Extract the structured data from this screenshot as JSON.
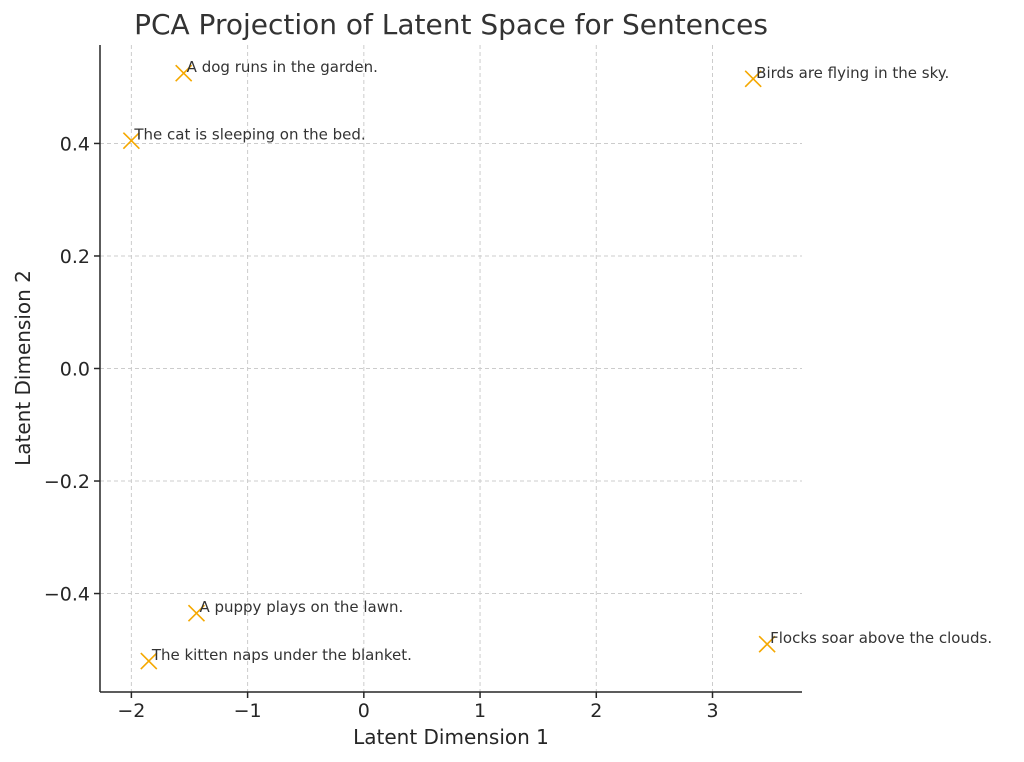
{
  "chart_data": {
    "type": "scatter",
    "title": "PCA Projection of Latent Space for Sentences",
    "xlabel": "Latent Dimension 1",
    "ylabel": "Latent Dimension 2",
    "xlim": [
      -2.27,
      3.77
    ],
    "ylim": [
      -0.575,
      0.575
    ],
    "xticks": [
      -2,
      -1,
      0,
      1,
      2,
      3
    ],
    "xtick_labels": [
      "−2",
      "−1",
      "0",
      "1",
      "2",
      "3"
    ],
    "yticks": [
      -0.4,
      -0.2,
      0.0,
      0.2,
      0.4
    ],
    "ytick_labels": [
      "−0.4",
      "−0.2",
      "0.0",
      "0.2",
      "0.4"
    ],
    "grid": true,
    "marker": "x",
    "color": "#f5a800",
    "points": [
      {
        "x": -2.0,
        "y": 0.405,
        "label": "The cat is sleeping on the bed."
      },
      {
        "x": -1.55,
        "y": 0.525,
        "label": "A dog runs in the garden."
      },
      {
        "x": -1.85,
        "y": -0.52,
        "label": "The kitten naps under the blanket."
      },
      {
        "x": -1.44,
        "y": -0.435,
        "label": "A puppy plays on the lawn."
      },
      {
        "x": 3.35,
        "y": 0.515,
        "label": "Birds are flying in the sky."
      },
      {
        "x": 3.47,
        "y": -0.49,
        "label": "Flocks soar above the clouds."
      }
    ]
  }
}
